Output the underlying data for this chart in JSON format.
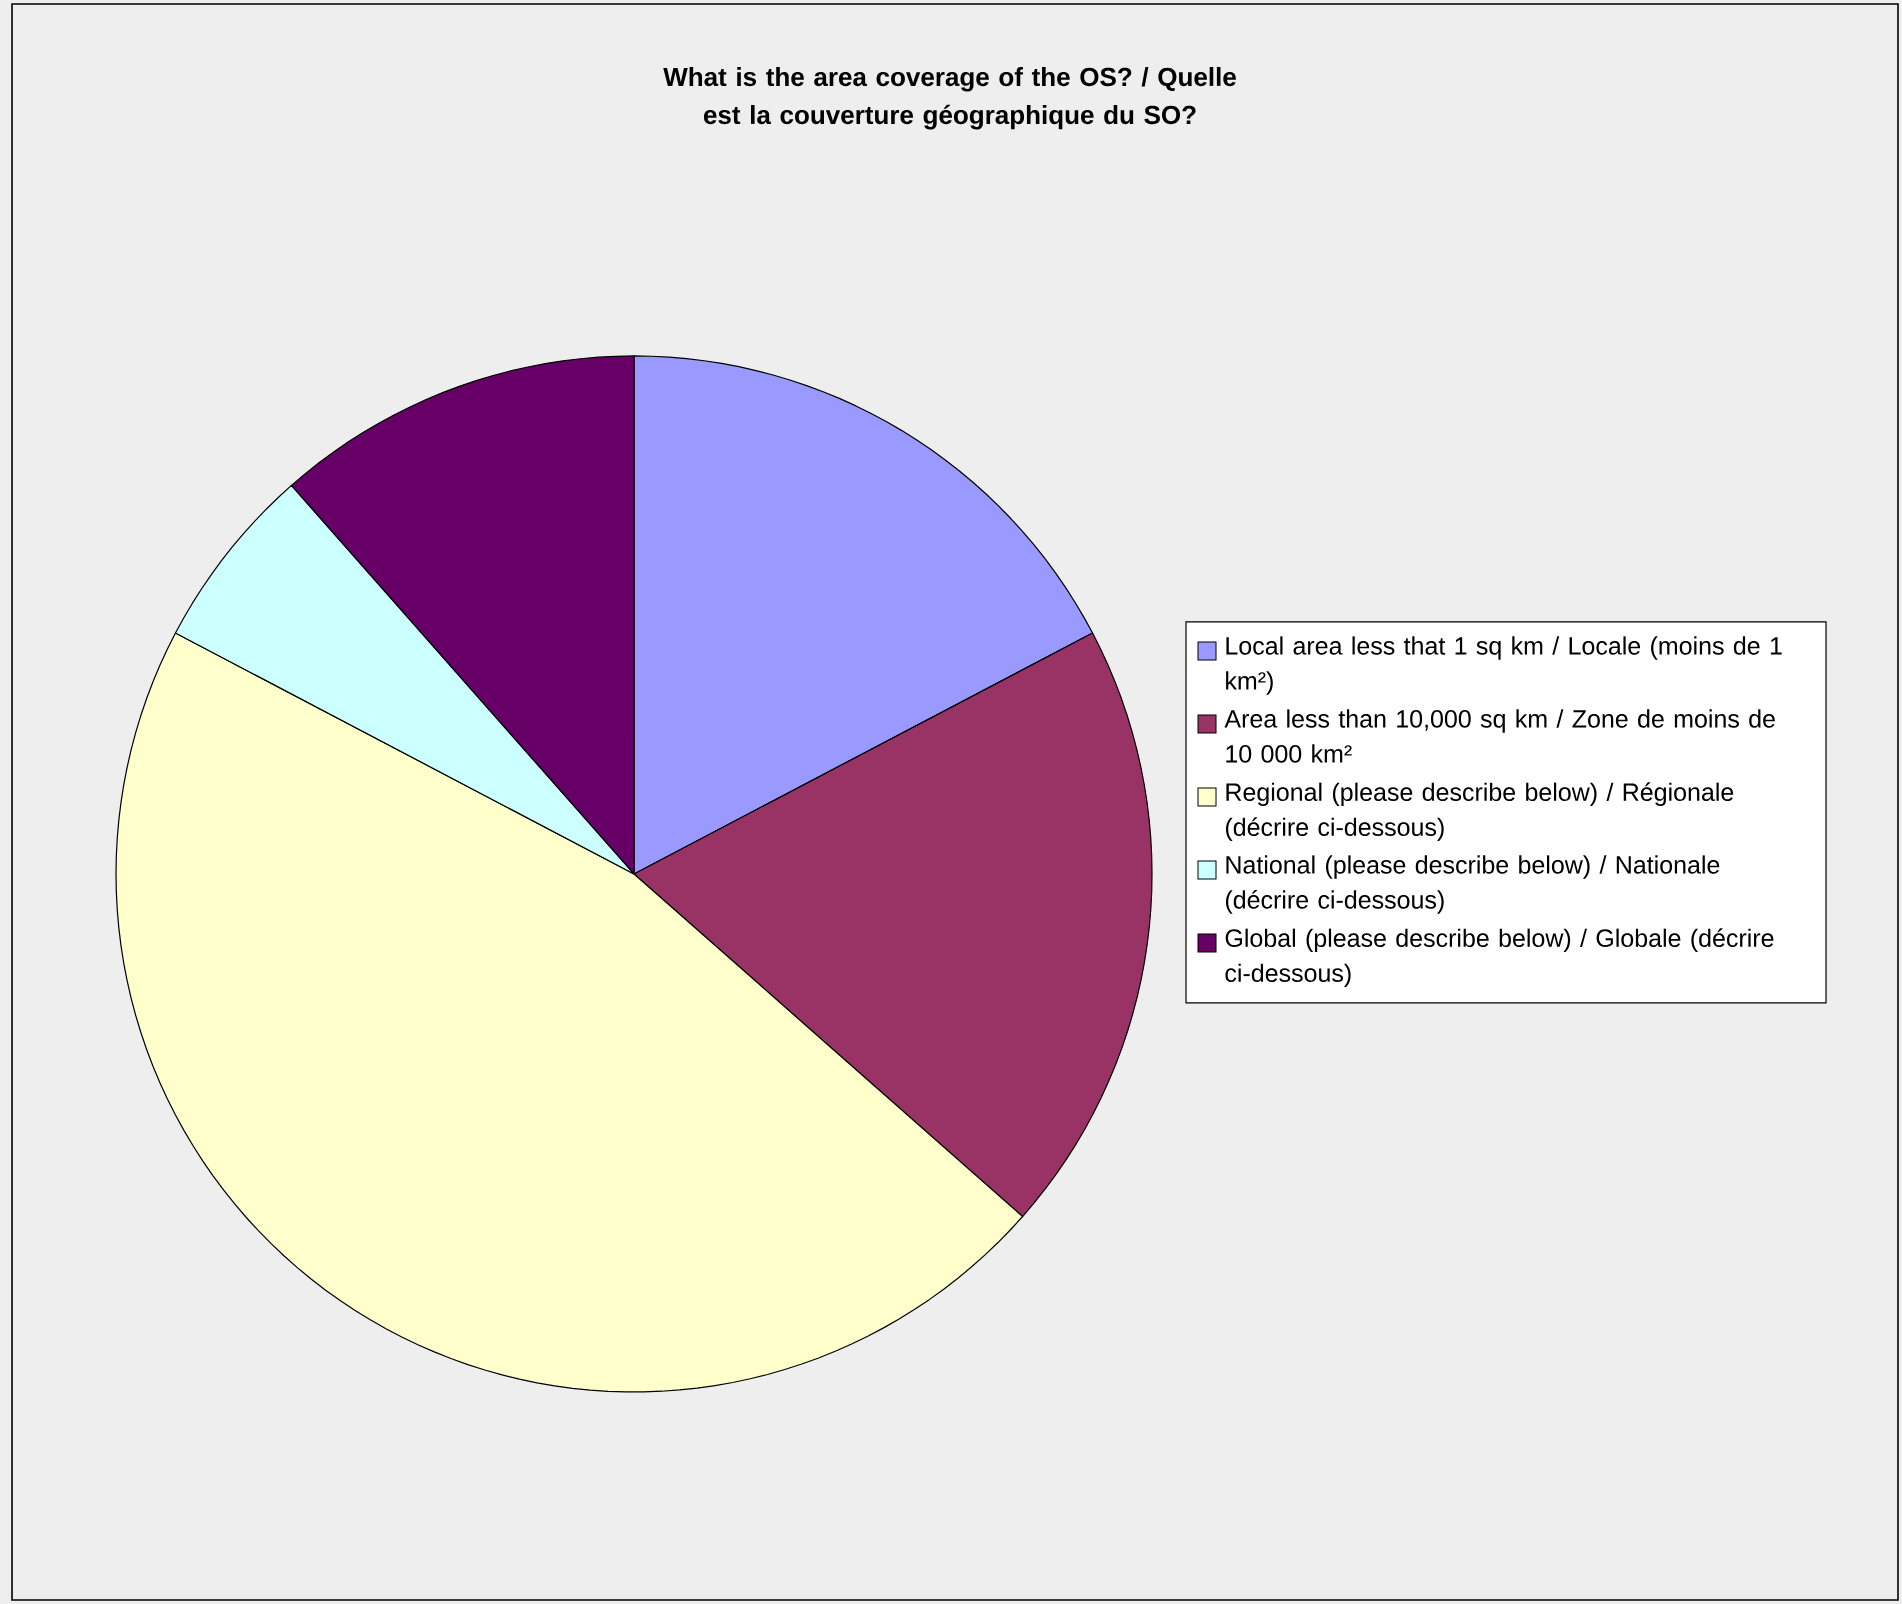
{
  "chart_data": {
    "type": "pie",
    "title": "What is the area coverage of the OS? / Quelle est la couverture géographique du SO?",
    "categories": [
      "Local area less that 1 sq km / Locale (moins de 1 km²)",
      "Area less than 10,000 sq km / Zone de moins de 10 000 km²",
      "Regional (please describe below) / Régionale (décrire ci-dessous)",
      "National (please describe below) / Nationale (décrire ci-dessous)",
      "Global (please describe below) / Globale (décrire ci-dessous)"
    ],
    "values": [
      17.3,
      19.2,
      46.2,
      5.8,
      11.5
    ],
    "colors": [
      "#9999ff",
      "#993366",
      "#ffffcc",
      "#ccffff",
      "#660066"
    ],
    "legend": "right"
  }
}
